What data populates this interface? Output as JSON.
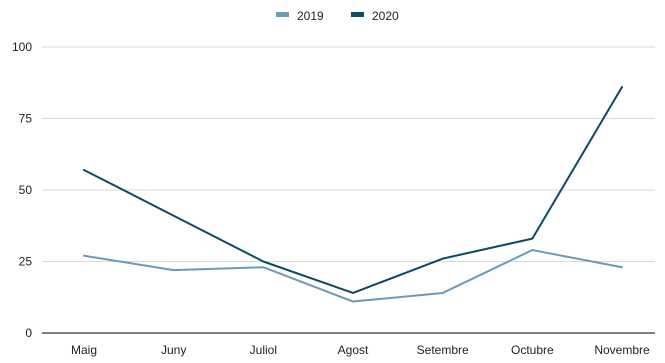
{
  "chart_data": {
    "type": "line",
    "categories": [
      "Maig",
      "Juny",
      "Juliol",
      "Agost",
      "Setembre",
      "Octubre",
      "Novembre"
    ],
    "series": [
      {
        "name": "2019",
        "values": [
          27,
          22,
          23,
          11,
          14,
          29,
          23
        ],
        "color": "#6b9ab8"
      },
      {
        "name": "2020",
        "values": [
          57,
          41,
          25,
          14,
          26,
          33,
          86
        ],
        "color": "#0d4a63"
      }
    ],
    "ylim": [
      0,
      100
    ],
    "yticks": [
      0,
      25,
      50,
      75,
      100
    ],
    "grid": true,
    "legend": "top-center"
  }
}
